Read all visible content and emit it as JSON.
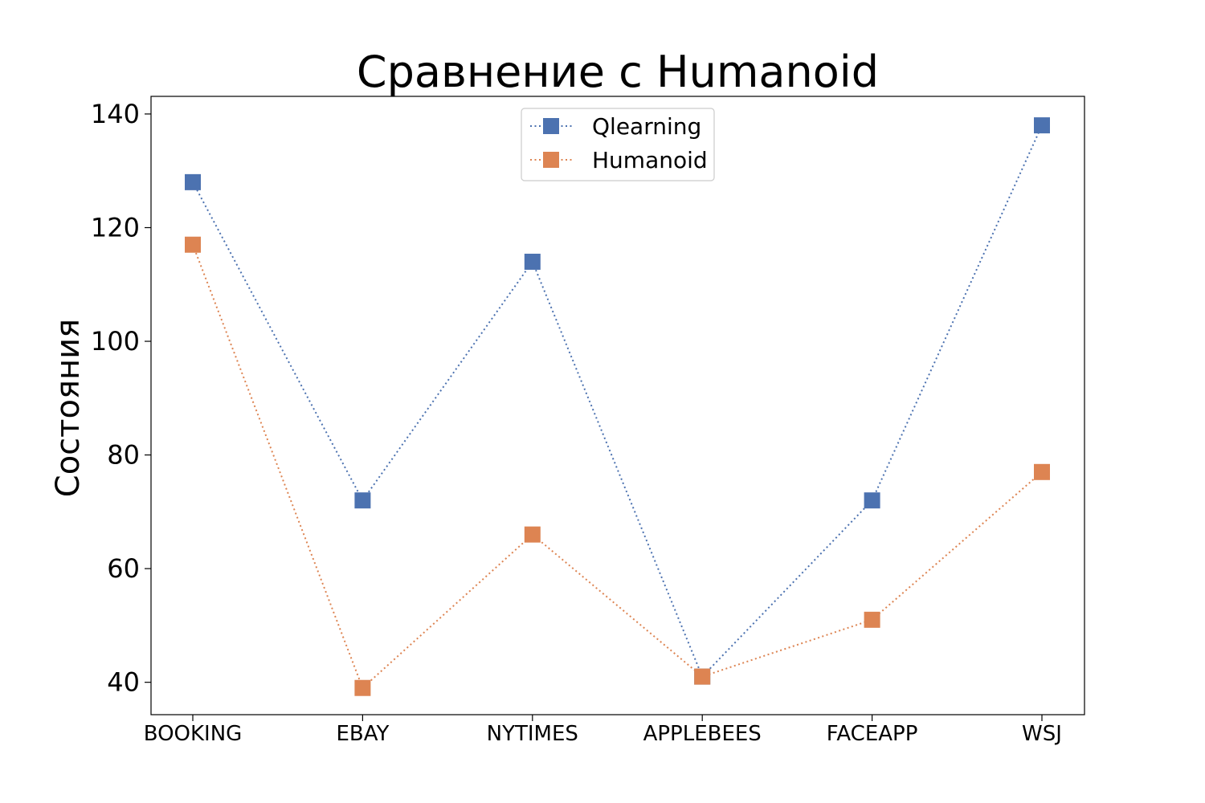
{
  "chart_data": {
    "type": "line",
    "title": "Сравнение с Humanoid",
    "xlabel": "",
    "ylabel": "Состояния",
    "categories": [
      "BOOKING",
      "EBAY",
      "NYTIMES",
      "APPLEBEES",
      "FACEAPP",
      "WSJ"
    ],
    "ylim": [
      34.3,
      143.1
    ],
    "yticks": [
      40,
      60,
      80,
      100,
      120,
      140
    ],
    "grid": false,
    "legend_position": "top-center",
    "series": [
      {
        "name": "Qlearning",
        "color": "#4C72B0",
        "marker": "square",
        "line_style": "dotted",
        "values": [
          128,
          72,
          114,
          41,
          72,
          138
        ]
      },
      {
        "name": "Humanoid",
        "color": "#DD8452",
        "marker": "square",
        "line_style": "dotted",
        "values": [
          117,
          39,
          66,
          41,
          51,
          77
        ]
      }
    ]
  }
}
